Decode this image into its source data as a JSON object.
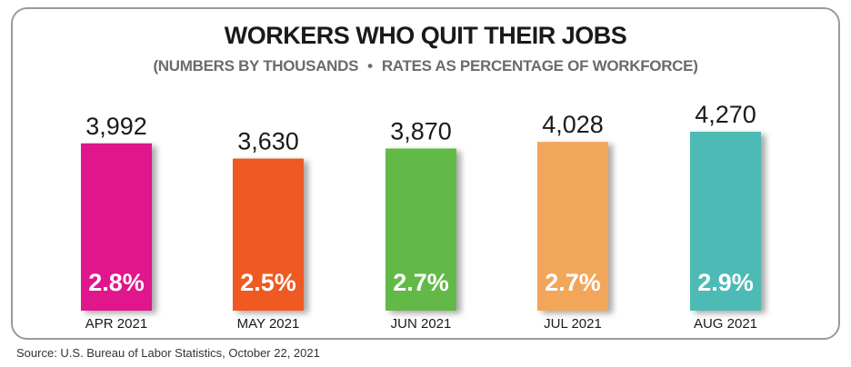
{
  "chart_data": {
    "type": "bar",
    "title": "WORKERS WHO QUIT THEIR JOBS",
    "subtitle_parts": [
      "(NUMBERS BY THOUSANDS",
      "RATES AS PERCENTAGE OF WORKFORCE)"
    ],
    "subtitle_separator": "•",
    "categories": [
      "APR 2021",
      "MAY 2021",
      "JUN 2021",
      "JUL 2021",
      "AUG 2021"
    ],
    "values": [
      3992,
      3630,
      3870,
      4028,
      4270
    ],
    "value_labels": [
      "3,992",
      "3,630",
      "3,870",
      "4,028",
      "4,270"
    ],
    "rates": [
      2.8,
      2.5,
      2.7,
      2.7,
      2.9
    ],
    "rate_labels": [
      "2.8%",
      "2.5%",
      "2.7%",
      "2.7%",
      "2.9%"
    ],
    "colors": [
      "#e0138c",
      "#ee5a24",
      "#62b946",
      "#f2a65a",
      "#4dbab5"
    ],
    "xlabel": "",
    "ylabel": "",
    "grid": false,
    "legend": "none"
  },
  "source": "Source: U.S. Bureau of Labor Statistics, October 22, 2021"
}
